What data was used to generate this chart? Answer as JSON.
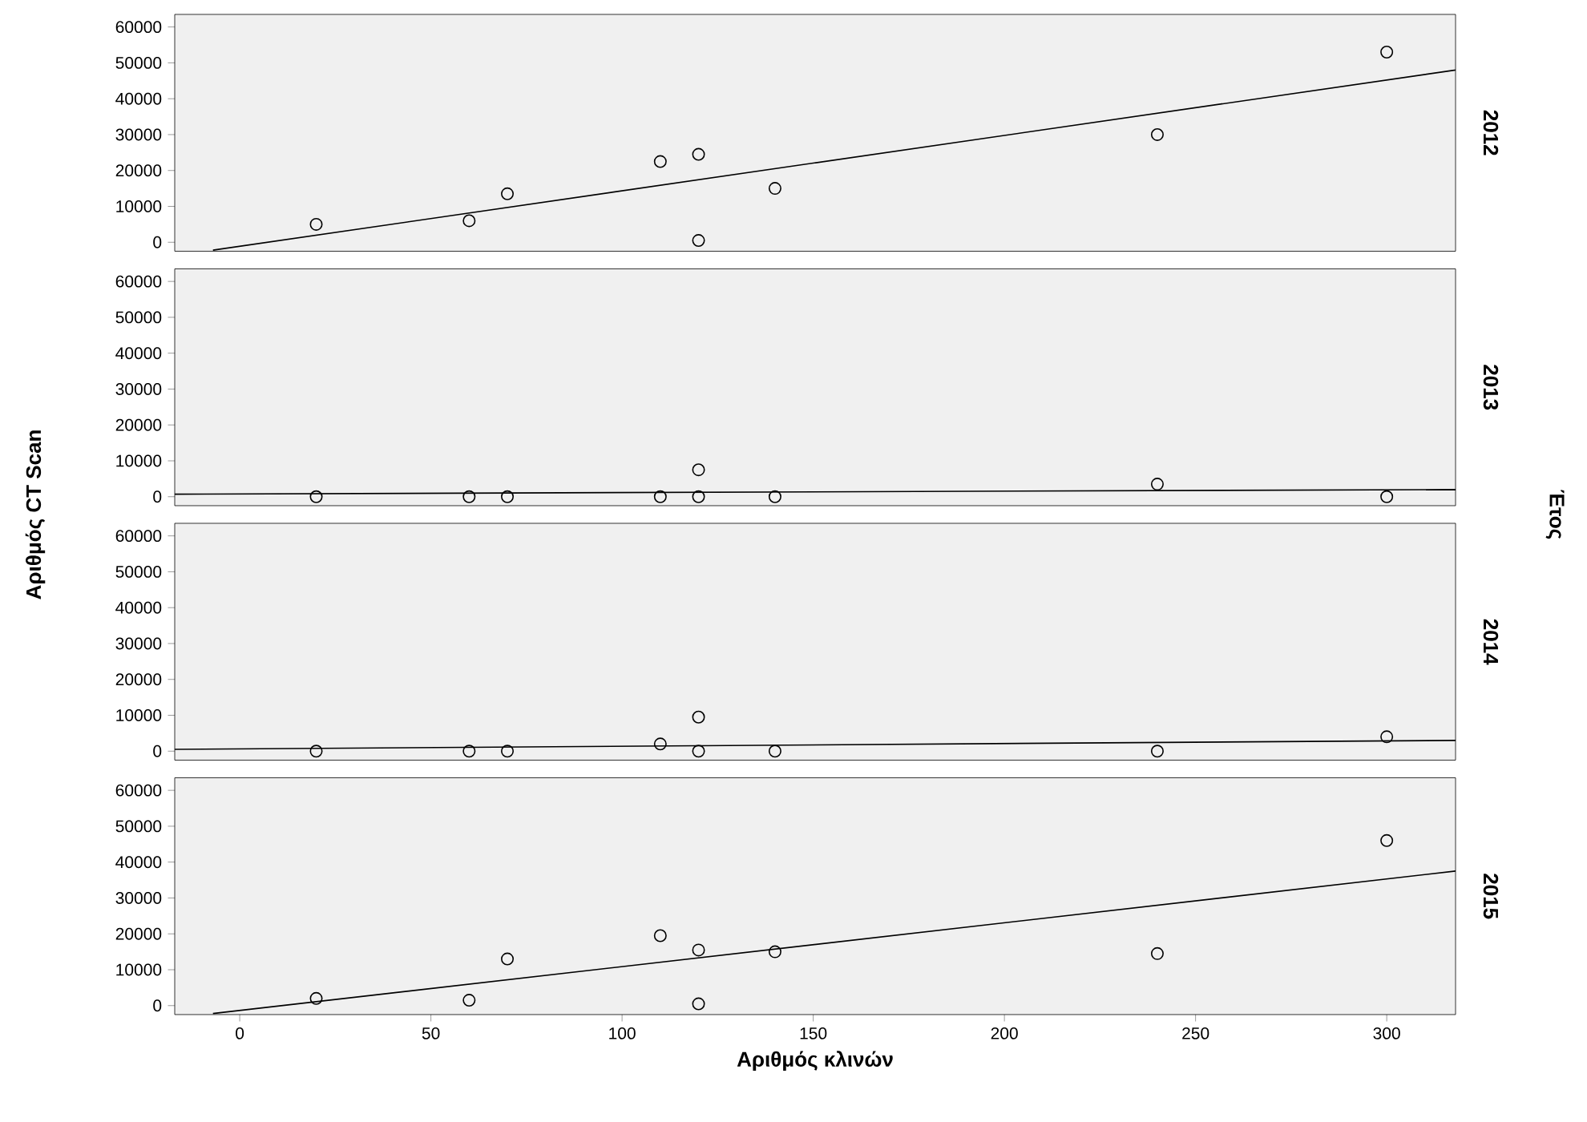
{
  "chart_data": [
    {
      "type": "scatter",
      "y2label": "2012",
      "tick_labels": "y",
      "xlim": [
        -17,
        318
      ],
      "xticks": [
        0,
        50,
        100,
        150,
        200,
        250,
        300
      ],
      "ylim": [
        -2500,
        63500
      ],
      "yticks": [
        0,
        10000,
        20000,
        30000,
        40000,
        50000,
        60000
      ],
      "series": [
        {
          "type": "scatter",
          "marker": "circle",
          "color": "#000000",
          "x": [
            20,
            60,
            70,
            110,
            120,
            120,
            140,
            240,
            300
          ],
          "values": [
            5000,
            6000,
            13500,
            22500,
            24500,
            500,
            15000,
            30000,
            53000
          ]
        },
        {
          "type": "line",
          "color": "#000000",
          "x": [
            -7,
            318
          ],
          "values": [
            -2200,
            48000
          ]
        }
      ]
    },
    {
      "type": "scatter",
      "y2label": "2013",
      "ylabel": "Αριθμός CT Scan",
      "tick_labels": "y",
      "xlim": [
        -17,
        318
      ],
      "xticks": [
        0,
        50,
        100,
        150,
        200,
        250,
        300
      ],
      "ylim": [
        -2500,
        63500
      ],
      "yticks": [
        0,
        10000,
        20000,
        30000,
        40000,
        50000,
        60000
      ],
      "series": [
        {
          "type": "scatter",
          "marker": "circle",
          "color": "#000000",
          "x": [
            20,
            60,
            70,
            110,
            120,
            120,
            140,
            240,
            300
          ],
          "values": [
            0,
            0,
            0,
            0,
            0,
            7500,
            0,
            3500,
            0
          ]
        },
        {
          "type": "line",
          "color": "#000000",
          "x": [
            -17,
            318
          ],
          "values": [
            700,
            2000
          ]
        }
      ]
    },
    {
      "type": "scatter",
      "y2label": "2014",
      "annotations": [
        "Έτος"
      ],
      "tick_labels": "y",
      "xlim": [
        -17,
        318
      ],
      "xticks": [
        0,
        50,
        100,
        150,
        200,
        250,
        300
      ],
      "ylim": [
        -2500,
        63500
      ],
      "yticks": [
        0,
        10000,
        20000,
        30000,
        40000,
        50000,
        60000
      ],
      "series": [
        {
          "type": "scatter",
          "marker": "circle",
          "color": "#000000",
          "x": [
            20,
            60,
            70,
            110,
            120,
            120,
            140,
            240,
            300
          ],
          "values": [
            0,
            0,
            0,
            2000,
            0,
            9500,
            0,
            0,
            4000
          ]
        },
        {
          "type": "line",
          "color": "#000000",
          "x": [
            -17,
            318
          ],
          "values": [
            500,
            3000
          ]
        }
      ]
    },
    {
      "type": "scatter",
      "y2label": "2015",
      "xlabel": "Αριθμός κλινών",
      "xlim": [
        -17,
        318
      ],
      "xticks": [
        0,
        50,
        100,
        150,
        200,
        250,
        300
      ],
      "ylim": [
        -2500,
        63500
      ],
      "yticks": [
        0,
        10000,
        20000,
        30000,
        40000,
        50000,
        60000
      ],
      "series": [
        {
          "type": "scatter",
          "marker": "circle",
          "color": "#000000",
          "x": [
            20,
            60,
            70,
            110,
            120,
            120,
            140,
            240,
            300
          ],
          "values": [
            2000,
            1500,
            13000,
            19500,
            15500,
            500,
            15000,
            14500,
            46000
          ]
        },
        {
          "type": "line",
          "color": "#000000",
          "x": [
            -7,
            318
          ],
          "values": [
            -2200,
            37500
          ]
        }
      ]
    }
  ]
}
